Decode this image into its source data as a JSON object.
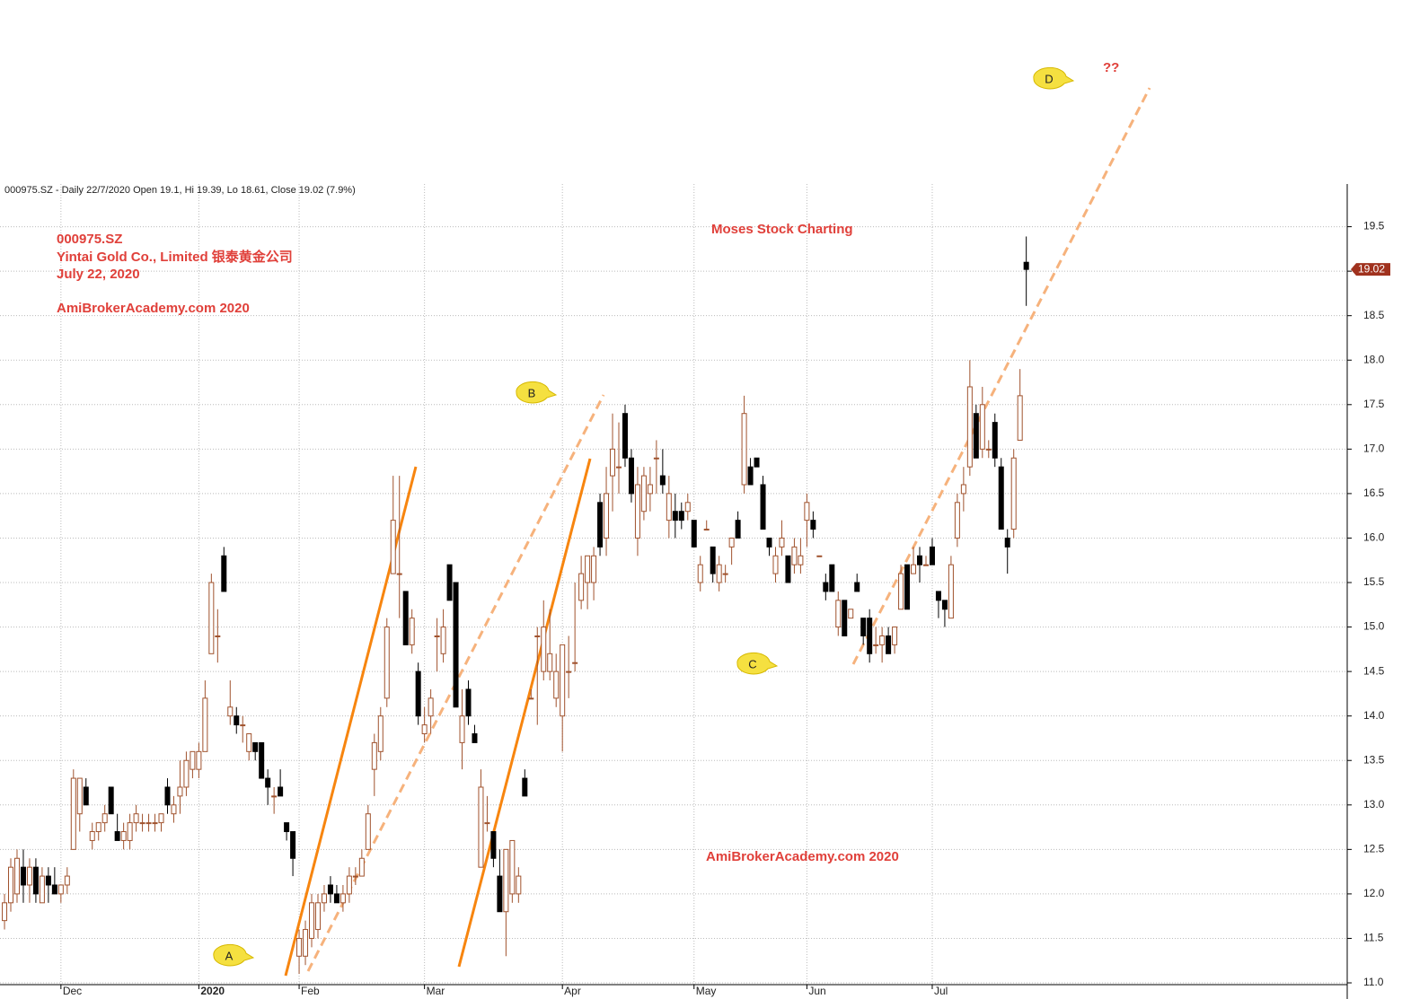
{
  "chart_data": {
    "type": "candlestick",
    "header": "000975.SZ - Daily 22/7/2020 Open 19.1, Hi 19.39, Lo 18.61, Close 19.02 (7.9%)",
    "annotations": {
      "ticker": "000975.SZ",
      "company": "Yintai Gold Co., Limited 银泰黄金公司",
      "date": "July 22, 2020",
      "site_top": "AmiBrokerAcademy.com  2020",
      "brand": "Moses Stock Charting",
      "site_bottom": "AmiBrokerAcademy.com  2020",
      "question": "??",
      "point_a": "A",
      "point_b": "B",
      "point_c": "C",
      "point_d": "D"
    },
    "up_color": "#a0522d",
    "down_color": "#000000",
    "grid": true,
    "xlim": [
      -0.72,
      214.2
    ],
    "xticks": [
      {
        "value": 9,
        "label": "Dec"
      },
      {
        "value": 31,
        "label": "2020"
      },
      {
        "value": 47,
        "label": "Feb"
      },
      {
        "value": 67,
        "label": "Mar"
      },
      {
        "value": 89,
        "label": "Apr"
      },
      {
        "value": 110,
        "label": "May"
      },
      {
        "value": 128,
        "label": "Jun"
      },
      {
        "value": 148,
        "label": "Jul"
      }
    ],
    "ylim": [
      10.98,
      19.98
    ],
    "yticks": [
      {
        "value": 11,
        "label": "11.0"
      },
      11.5,
      {
        "value": 12,
        "label": "12.0"
      },
      12.5,
      {
        "value": 13,
        "label": "13.0"
      },
      13.5,
      {
        "value": 14,
        "label": "14.0"
      },
      14.5,
      {
        "value": 15,
        "label": "15.0"
      },
      15.5,
      {
        "value": 16,
        "label": "16.0"
      },
      16.5,
      {
        "value": 17,
        "label": "17.0"
      },
      17.5,
      {
        "value": 18,
        "label": "18.0"
      },
      18.5,
      {
        "value": 19,
        "label": "19.0"
      },
      19.5
    ],
    "open": [
      11.7,
      11.9,
      12.0,
      12.3,
      12.1,
      12.3,
      11.9,
      12.2,
      12.1,
      12.0,
      12.1,
      12.5,
      12.9,
      13.2,
      12.6,
      12.7,
      12.8,
      13.2,
      12.7,
      12.6,
      12.6,
      12.8,
      12.8,
      12.8,
      12.8,
      12.8,
      13.2,
      12.9,
      13.1,
      13.2,
      13.4,
      13.4,
      13.6,
      14.7,
      14.9,
      15.8,
      14.0,
      14.0,
      13.9,
      13.6,
      13.7,
      13.7,
      13.3,
      13.1,
      13.2,
      12.8,
      12.7,
      11.3,
      11.3,
      11.5,
      11.6,
      11.9,
      12.1,
      12.0,
      11.9,
      12.0,
      12.2,
      12.2,
      12.5,
      13.4,
      13.6,
      14.2,
      15.6,
      15.6,
      15.4,
      14.8,
      14.5,
      13.8,
      14.0,
      14.9,
      14.7,
      15.7,
      15.5,
      13.7,
      14.3,
      13.8,
      12.3,
      12.8,
      12.7,
      12.2,
      11.8,
      12.0,
      12.0,
      13.3,
      14.2,
      14.9,
      14.5,
      14.5,
      14.2,
      14.0,
      14.5,
      14.6,
      15.3,
      15.5,
      15.5,
      16.4,
      16.0,
      16.7,
      16.8,
      17.4,
      16.9,
      16.0,
      16.3,
      16.5,
      16.9,
      16.7,
      16.2,
      16.3,
      16.3,
      16.3,
      16.2,
      15.5,
      16.1,
      15.9,
      15.5,
      15.6,
      15.9,
      16.2,
      16.6,
      16.8,
      16.9,
      16.6,
      16.0,
      15.6,
      15.9,
      15.8,
      15.7,
      15.7,
      16.2,
      16.2,
      15.8,
      15.5,
      15.7,
      15.0,
      15.3,
      15.1,
      15.5,
      15.1,
      15.1,
      14.8,
      14.8,
      14.9,
      14.8,
      15.2,
      15.7,
      15.6,
      15.8,
      15.7,
      15.9,
      15.4,
      15.3,
      15.1,
      16.0,
      16.5,
      16.8,
      17.4,
      17.0,
      17.0,
      17.3,
      16.8,
      16.0,
      16.1,
      17.1,
      19.1
    ],
    "high": [
      12.0,
      12.4,
      12.5,
      12.5,
      12.4,
      12.4,
      12.3,
      12.3,
      12.3,
      12.1,
      12.3,
      13.4,
      13.3,
      13.3,
      12.8,
      12.8,
      13.0,
      13.2,
      12.9,
      12.8,
      12.9,
      13.0,
      12.9,
      12.9,
      12.9,
      12.9,
      13.3,
      13.1,
      13.5,
      13.6,
      13.6,
      13.7,
      14.4,
      15.6,
      15.2,
      15.9,
      14.4,
      14.1,
      14.0,
      13.8,
      13.7,
      13.7,
      13.4,
      13.2,
      13.4,
      12.8,
      12.7,
      11.6,
      11.7,
      12.0,
      12.0,
      12.1,
      12.2,
      12.1,
      12.1,
      12.3,
      12.3,
      12.5,
      13.0,
      13.8,
      14.1,
      15.1,
      16.7,
      16.7,
      15.4,
      15.2,
      14.6,
      14.1,
      14.3,
      15.1,
      15.2,
      15.7,
      15.5,
      14.3,
      14.4,
      13.9,
      13.4,
      13.1,
      12.7,
      12.5,
      12.5,
      12.6,
      12.3,
      13.4,
      14.3,
      15.0,
      15.3,
      15.2,
      14.7,
      14.8,
      14.9,
      15.5,
      15.8,
      15.8,
      15.9,
      16.5,
      16.8,
      17.4,
      17.3,
      17.5,
      17.0,
      16.8,
      16.8,
      16.8,
      17.1,
      17.0,
      16.7,
      16.5,
      16.4,
      16.5,
      16.2,
      15.8,
      16.2,
      15.9,
      15.8,
      15.7,
      16.0,
      16.3,
      17.6,
      16.9,
      16.9,
      16.7,
      16.0,
      15.9,
      16.2,
      15.8,
      16.0,
      16.0,
      16.5,
      16.3,
      15.8,
      15.6,
      15.7,
      15.4,
      15.3,
      15.2,
      15.6,
      15.1,
      15.2,
      15.0,
      15.0,
      15.0,
      15.0,
      15.7,
      15.7,
      15.9,
      15.9,
      15.8,
      16.0,
      15.4,
      15.3,
      15.8,
      16.5,
      16.8,
      18.0,
      17.5,
      17.7,
      17.1,
      17.4,
      16.9,
      16.1,
      17.0,
      17.9,
      19.39
    ],
    "low": [
      11.6,
      11.8,
      11.9,
      11.9,
      11.9,
      11.9,
      11.9,
      11.9,
      12.0,
      11.9,
      12.0,
      12.5,
      12.7,
      13.0,
      12.5,
      12.6,
      12.7,
      12.9,
      12.6,
      12.5,
      12.5,
      12.7,
      12.7,
      12.7,
      12.7,
      12.7,
      12.9,
      12.8,
      12.9,
      13.1,
      13.3,
      13.3,
      13.6,
      14.7,
      14.6,
      15.4,
      13.9,
      13.8,
      13.7,
      13.5,
      13.5,
      13.3,
      13.0,
      12.9,
      13.1,
      12.6,
      12.2,
      11.1,
      11.2,
      11.4,
      11.5,
      11.8,
      11.9,
      11.9,
      11.8,
      11.9,
      12.1,
      12.2,
      12.5,
      13.1,
      13.5,
      14.1,
      15.6,
      15.1,
      14.8,
      14.7,
      13.9,
      13.7,
      13.8,
      14.5,
      14.6,
      15.3,
      14.1,
      13.4,
      13.9,
      13.7,
      12.3,
      12.7,
      12.3,
      11.8,
      11.3,
      11.9,
      11.9,
      13.1,
      14.2,
      13.9,
      14.4,
      14.4,
      14.1,
      13.6,
      14.2,
      14.5,
      15.2,
      15.2,
      15.3,
      15.8,
      15.8,
      16.3,
      16.5,
      16.8,
      16.4,
      15.8,
      16.2,
      16.3,
      16.5,
      16.5,
      16.0,
      16.0,
      16.1,
      16.2,
      15.9,
      15.4,
      16.1,
      15.5,
      15.4,
      15.5,
      15.7,
      16.0,
      16.5,
      16.6,
      16.8,
      16.1,
      15.8,
      15.5,
      15.8,
      15.5,
      15.6,
      15.6,
      15.9,
      16.0,
      15.8,
      15.3,
      15.4,
      14.9,
      14.9,
      15.1,
      15.4,
      14.8,
      14.6,
      14.7,
      14.6,
      14.7,
      14.7,
      15.2,
      15.2,
      15.6,
      15.5,
      15.7,
      15.7,
      15.1,
      15.0,
      15.1,
      15.9,
      16.3,
      16.7,
      16.9,
      16.9,
      16.9,
      16.8,
      16.1,
      15.6,
      16.0,
      17.1,
      18.61
    ],
    "close": [
      11.9,
      12.3,
      12.4,
      12.1,
      12.3,
      12.0,
      12.2,
      12.1,
      12.0,
      12.1,
      12.2,
      13.3,
      13.3,
      13.0,
      12.7,
      12.8,
      12.9,
      12.9,
      12.6,
      12.7,
      12.8,
      12.9,
      12.8,
      12.8,
      12.8,
      12.9,
      13.0,
      13.0,
      13.2,
      13.5,
      13.6,
      13.6,
      14.2,
      15.5,
      14.9,
      15.4,
      14.1,
      13.9,
      13.9,
      13.8,
      13.6,
      13.3,
      13.2,
      13.1,
      13.1,
      12.7,
      12.4,
      11.5,
      11.6,
      11.9,
      11.9,
      12.0,
      12.0,
      11.9,
      12.0,
      12.2,
      12.2,
      12.4,
      12.9,
      13.7,
      14.0,
      15.0,
      16.2,
      15.6,
      14.8,
      15.1,
      14.0,
      13.9,
      14.2,
      14.9,
      15.0,
      15.3,
      14.1,
      14.0,
      14.0,
      13.7,
      13.2,
      12.8,
      12.4,
      11.8,
      12.5,
      12.6,
      12.2,
      13.1,
      14.2,
      14.9,
      15.0,
      14.7,
      14.5,
      14.8,
      14.5,
      14.6,
      15.6,
      15.8,
      15.8,
      15.9,
      16.5,
      17.0,
      16.8,
      16.9,
      16.5,
      16.6,
      16.7,
      16.6,
      16.9,
      16.6,
      16.5,
      16.2,
      16.2,
      16.4,
      15.9,
      15.7,
      16.1,
      15.6,
      15.7,
      15.6,
      16.0,
      16.0,
      17.4,
      16.6,
      16.8,
      16.1,
      15.9,
      15.8,
      16.0,
      15.5,
      15.9,
      15.8,
      16.4,
      16.1,
      15.8,
      15.4,
      15.4,
      15.3,
      14.9,
      15.2,
      15.4,
      14.9,
      14.7,
      14.8,
      14.9,
      14.7,
      15.0,
      15.6,
      15.2,
      15.7,
      15.7,
      15.7,
      15.7,
      15.3,
      15.2,
      15.7,
      16.4,
      16.6,
      17.7,
      16.9,
      17.5,
      17.0,
      16.9,
      16.1,
      15.9,
      16.9,
      17.6,
      19.02
    ]
  }
}
